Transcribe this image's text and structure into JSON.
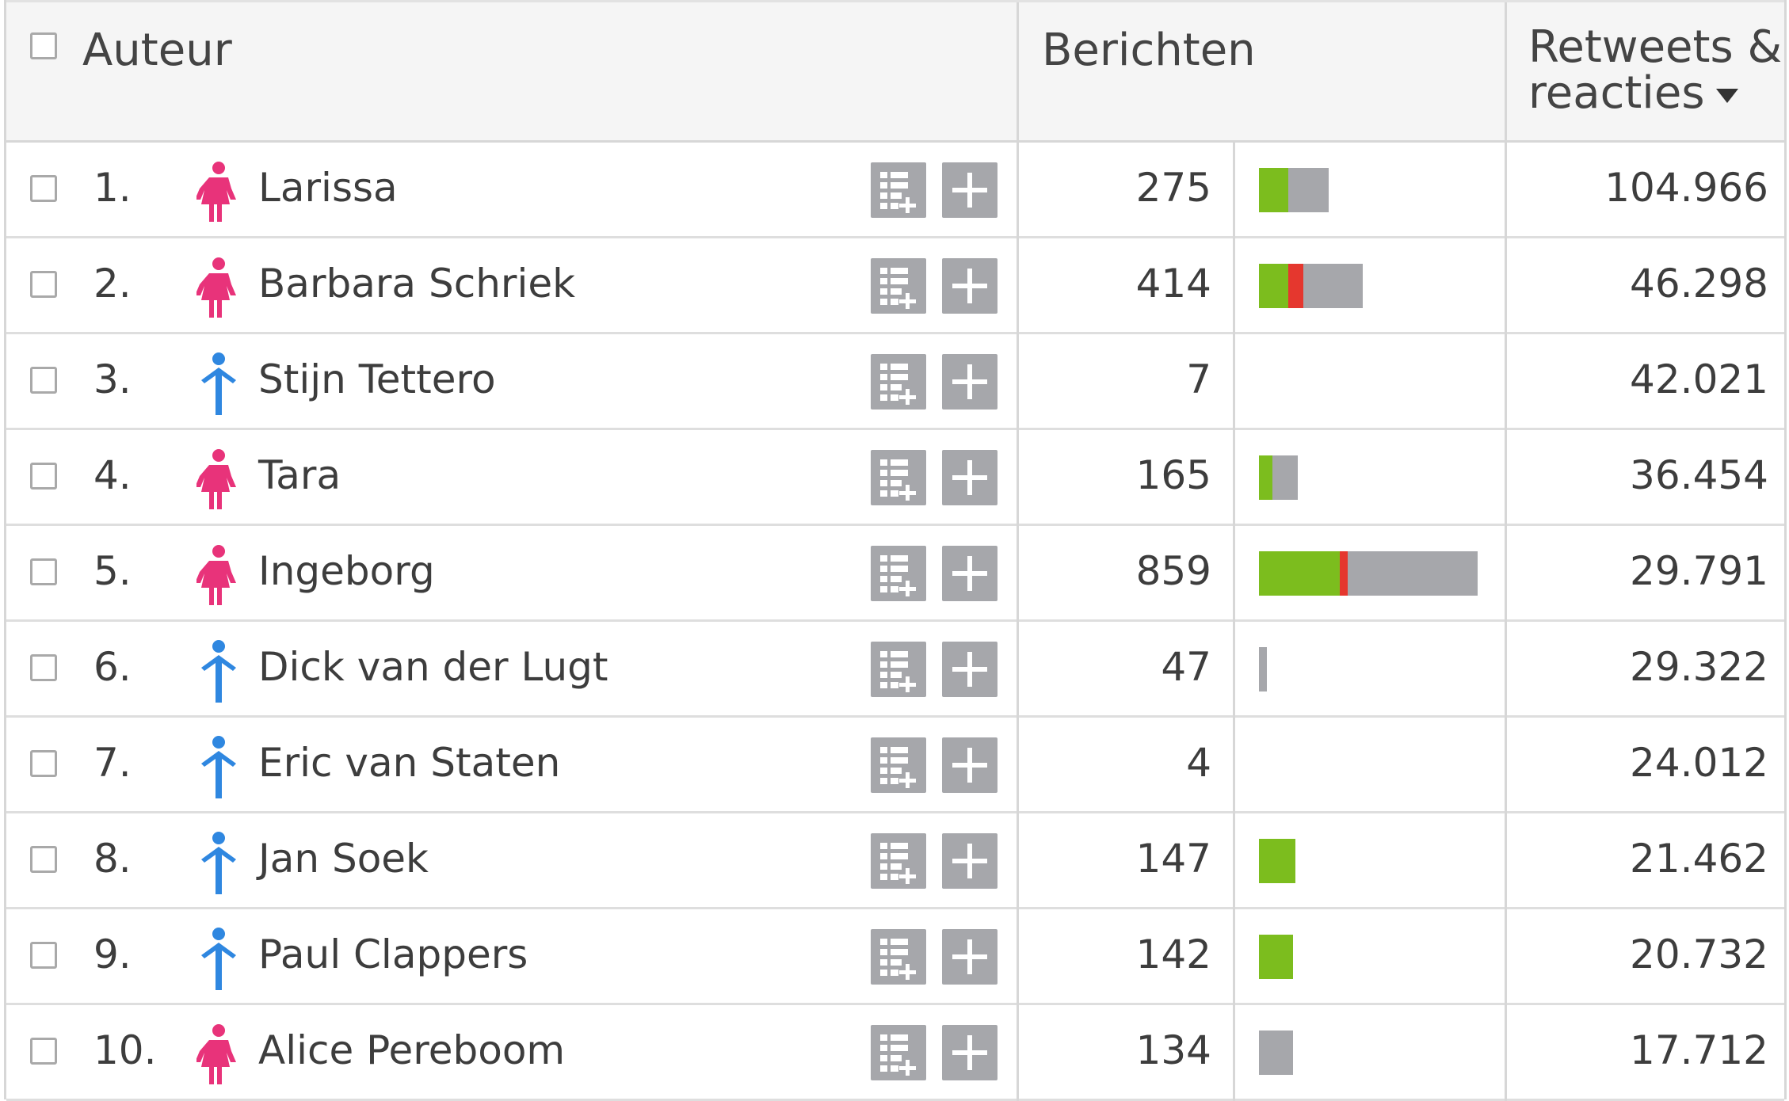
{
  "header": {
    "author_label": "Auteur",
    "messages_label": "Berichten",
    "retweets_line1": "Retweets &",
    "retweets_line2": "reacties"
  },
  "colors": {
    "female": "#e8337a",
    "male": "#2f87e0",
    "positive": "#7cbd1e",
    "negative": "#e5372e",
    "neutral": "#a6a7ab"
  },
  "icons": {
    "add_to_list": "list-add-icon",
    "add": "plus-icon",
    "female": "female-person-icon",
    "male": "male-person-icon",
    "sort": "caret-down-icon"
  },
  "rows": [
    {
      "rank": "1.",
      "gender": "female",
      "name": "Larissa",
      "messages": "275",
      "bar": {
        "positive": 26,
        "negative": 0,
        "neutral": 35
      },
      "retweets": "104.966"
    },
    {
      "rank": "2.",
      "gender": "female",
      "name": "Barbara Schriek",
      "messages": "414",
      "bar": {
        "positive": 26,
        "negative": 13,
        "neutral": 52
      },
      "retweets": "46.298"
    },
    {
      "rank": "3.",
      "gender": "male",
      "name": "Stijn Tettero",
      "messages": "7",
      "bar": {
        "positive": 0,
        "negative": 0,
        "neutral": 0
      },
      "retweets": "42.021"
    },
    {
      "rank": "4.",
      "gender": "female",
      "name": "Tara",
      "messages": "165",
      "bar": {
        "positive": 12,
        "negative": 0,
        "neutral": 22
      },
      "retweets": "36.454"
    },
    {
      "rank": "5.",
      "gender": "female",
      "name": "Ingeborg",
      "messages": "859",
      "bar": {
        "positive": 71,
        "negative": 7,
        "neutral": 114
      },
      "retweets": "29.791"
    },
    {
      "rank": "6.",
      "gender": "male",
      "name": "Dick van der Lugt",
      "messages": "47",
      "bar": {
        "positive": 0,
        "negative": 0,
        "neutral": 7
      },
      "retweets": "29.322"
    },
    {
      "rank": "7.",
      "gender": "male",
      "name": "Eric van Staten",
      "messages": "4",
      "bar": {
        "positive": 0,
        "negative": 0,
        "neutral": 0
      },
      "retweets": "24.012"
    },
    {
      "rank": "8.",
      "gender": "male",
      "name": "Jan Soek",
      "messages": "147",
      "bar": {
        "positive": 32,
        "negative": 0,
        "neutral": 0
      },
      "retweets": "21.462"
    },
    {
      "rank": "9.",
      "gender": "male",
      "name": "Paul Clappers",
      "messages": "142",
      "bar": {
        "positive": 30,
        "negative": 0,
        "neutral": 0
      },
      "retweets": "20.732"
    },
    {
      "rank": "10.",
      "gender": "female",
      "name": "Alice Pereboom",
      "messages": "134",
      "bar": {
        "positive": 0,
        "negative": 0,
        "neutral": 30
      },
      "retweets": "17.712"
    }
  ]
}
